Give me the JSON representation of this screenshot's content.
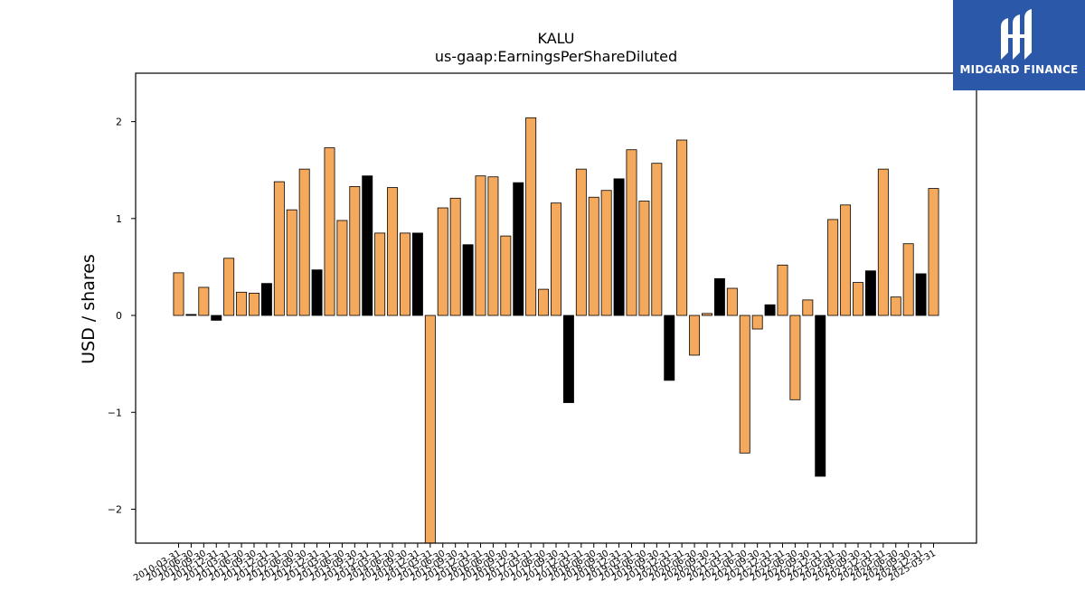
{
  "brand": {
    "name": "MIDGARD FINANCE",
    "color": "#2b58a8",
    "icon": "midgard-logo-icon"
  },
  "colors": {
    "positive_bar": "#f5a95c",
    "highlight_bar": "#000000",
    "frame": "#000000"
  },
  "chart_data": {
    "type": "bar",
    "title": "KALU",
    "subtitle": "us-gaap:EarningsPerShareDiluted",
    "xlabel": "",
    "ylabel": "USD / shares",
    "ylim": [
      -2.35,
      2.5
    ],
    "yticks": [
      -2,
      -1,
      0,
      1,
      2
    ],
    "ytick_labels": [
      "−2",
      "−1",
      "0",
      "1",
      "2"
    ],
    "grid": false,
    "legend": "none",
    "xtick_labels_visible": [
      "2010-03-31",
      "2010-06-30",
      "2010-09-30",
      "2010-12-31",
      "2011-03-31",
      "2011-06-30",
      "2011-09-30",
      "2011-12-31",
      "2012-03-31",
      "2012-06-30",
      "2012-09-30",
      "2012-12-31",
      "2013-03-31",
      "2013-06-30",
      "2013-09-30",
      "2013-12-31",
      "2014-03-31",
      "2014-06-30",
      "2014-09-30",
      "2014-12-31",
      "2015-03-31",
      "2015-06-30",
      "2015-09-30",
      "2015-12-31",
      "2016-03-31",
      "2016-06-30",
      "2016-09-30",
      "2016-12-31",
      "2017-03-31",
      "2017-06-30",
      "2017-09-30",
      "2017-12-31",
      "2018-03-31",
      "2018-06-30",
      "2018-09-30",
      "2018-12-31",
      "2019-03-31",
      "2019-06-30",
      "2019-09-30",
      "2019-12-31",
      "2020-03-31",
      "2020-06-30",
      "2020-09-30",
      "2020-12-31",
      "2021-03-31",
      "2021-06-30",
      "2021-09-30",
      "2021-12-31",
      "2022-03-31",
      "2022-06-30",
      "2022-09-30",
      "2022-12-31",
      "2023-03-31",
      "2023-06-30",
      "2023-09-30",
      "2023-12-31",
      "2024-03-31",
      "2024-06-30",
      "2024-09-30",
      "2024-12-31",
      "2025-03-31"
    ],
    "values": [
      0.44,
      0.01,
      0.29,
      -0.05,
      0.59,
      0.24,
      0.23,
      0.33,
      1.38,
      1.09,
      1.51,
      0.47,
      1.73,
      0.98,
      1.33,
      1.44,
      0.85,
      1.32,
      0.85,
      0.85,
      -2.35,
      1.11,
      1.21,
      0.73,
      1.44,
      1.43,
      0.82,
      1.37,
      2.04,
      0.27,
      1.16,
      -0.9,
      1.51,
      1.22,
      1.29,
      1.41,
      1.71,
      1.18,
      1.57,
      -0.67,
      1.81,
      -0.41,
      0.02,
      0.38,
      0.28,
      -1.42,
      -0.14,
      0.11,
      0.52,
      -0.87,
      0.16,
      -1.66,
      0.99,
      1.14,
      0.34,
      0.46,
      1.51,
      0.19,
      0.74,
      0.43,
      1.31
    ],
    "highlight": [
      false,
      true,
      false,
      true,
      false,
      false,
      false,
      true,
      false,
      false,
      false,
      true,
      false,
      false,
      false,
      true,
      false,
      false,
      false,
      true,
      false,
      false,
      false,
      true,
      false,
      false,
      false,
      true,
      false,
      false,
      false,
      true,
      false,
      false,
      false,
      true,
      false,
      false,
      false,
      true,
      false,
      false,
      false,
      true,
      false,
      false,
      false,
      true,
      false,
      false,
      false,
      true,
      false,
      false,
      false,
      true,
      false,
      false,
      false,
      true,
      false
    ]
  }
}
